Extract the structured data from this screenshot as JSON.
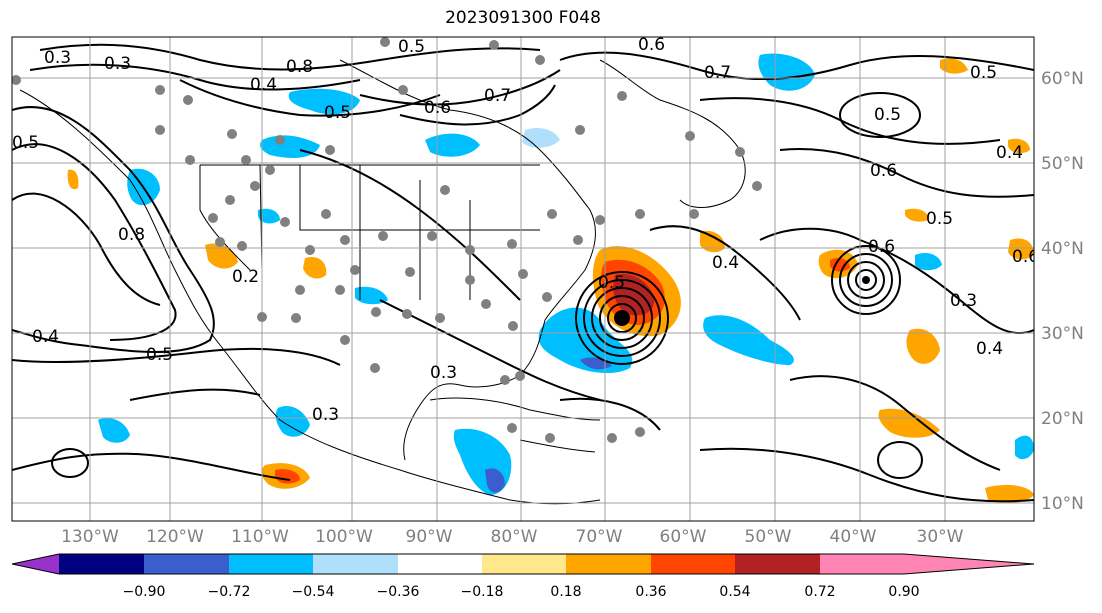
{
  "title": "2023091300 F048",
  "lon_ticks": [
    "130°W",
    "120°W",
    "110°W",
    "100°W",
    "90°W",
    "80°W",
    "70°W",
    "60°W",
    "50°W",
    "40°W",
    "30°W"
  ],
  "lat_ticks": [
    "60°N",
    "50°N",
    "40°N",
    "30°N",
    "20°N",
    "10°N"
  ],
  "colorbar": {
    "colors": [
      "#9932cc",
      "#000080",
      "#3a5fcd",
      "#00bfff",
      "#afdffa",
      "#ffffff",
      "#ffe98b",
      "#ffa500",
      "#ff4500",
      "#b22222",
      "#ff86b4"
    ],
    "ticks": [
      "−0.90",
      "−0.72",
      "−0.54",
      "−0.36",
      "−0.18",
      "0.18",
      "0.36",
      "0.54",
      "0.72",
      "0.90"
    ]
  },
  "contour_labels": [
    "0.3",
    "0.3",
    "0.8",
    "0.4",
    "0.5",
    "0.5",
    "0.7",
    "0.8",
    "0.6",
    "0.7",
    "0.5",
    "0.6",
    "0.5",
    "0.6",
    "0.4",
    "0.5",
    "0.5",
    "0.6",
    "0.4",
    "0.3",
    "0.4",
    "0.5",
    "0.2",
    "0.3",
    "0.5",
    "0.4",
    "0.3",
    "0.6"
  ],
  "colors": {
    "frame": "#000000",
    "grid": "#a0a0a0",
    "coast": "#000000",
    "stations": "#808080"
  }
}
